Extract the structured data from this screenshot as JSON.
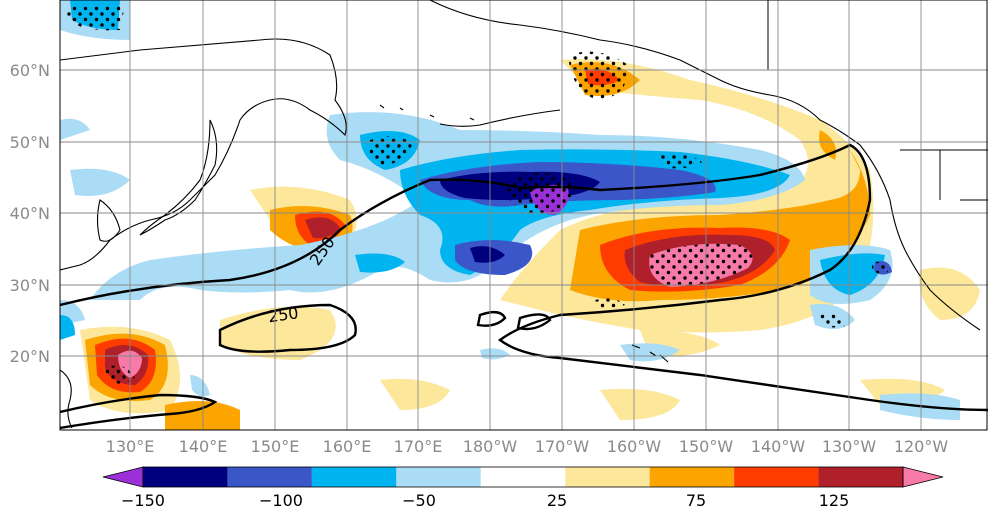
{
  "map": {
    "lat_labels": [
      "60°N",
      "50°N",
      "40°N",
      "30°N",
      "20°N"
    ],
    "lon_labels": [
      "130°E",
      "140°E",
      "150°E",
      "160°E",
      "170°E",
      "180°W",
      "170°W",
      "160°W",
      "150°W",
      "140°W",
      "130°W",
      "120°W"
    ],
    "contour_labels": [
      "250",
      "250"
    ],
    "stippling": "dots over significant regions"
  },
  "colorbar": {
    "tick_labels": [
      "−150",
      "−100",
      "−50",
      "25",
      "75",
      "125"
    ],
    "colors": [
      "#9b30d9",
      "#00007f",
      "#3a56c8",
      "#00b4f0",
      "#aadcf5",
      "#ffffff",
      "#fce79a",
      "#fca500",
      "#ff3c00",
      "#b0202a",
      "#f77aa8"
    ],
    "extend": "both"
  }
}
